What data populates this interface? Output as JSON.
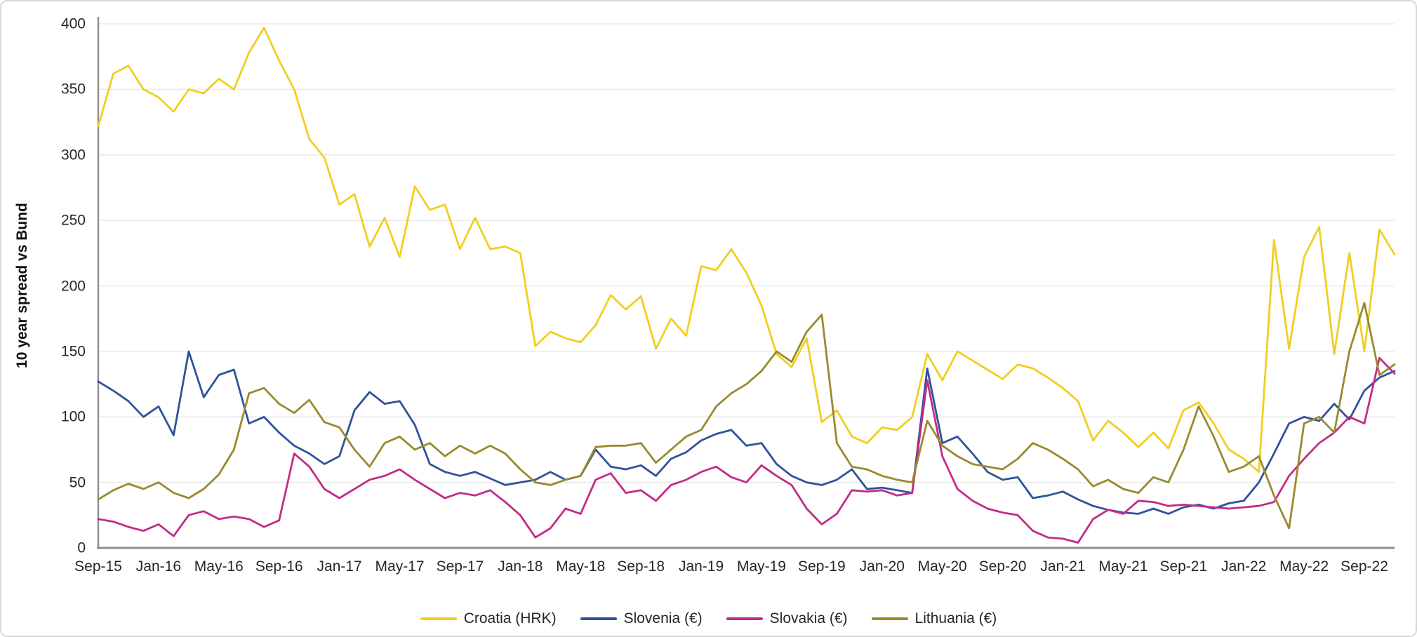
{
  "chart_data": {
    "type": "line",
    "title": "",
    "ylabel": "10 year spread vs Bund",
    "xlabel": "",
    "ylim": [
      0,
      400
    ],
    "yticks": [
      0,
      50,
      100,
      150,
      200,
      250,
      300,
      350,
      400
    ],
    "grid": "horizontal",
    "grid_color": "#e9e9e9",
    "axis_color": "#8c8c8c",
    "legend_position": "bottom",
    "x_frequency": "monthly",
    "x_start": "Sep-15",
    "x_end": "Nov-22",
    "x_tick_labels": [
      "Sep-15",
      "Jan-16",
      "May-16",
      "Sep-16",
      "Jan-17",
      "May-17",
      "Sep-17",
      "Jan-18",
      "May-18",
      "Sep-18",
      "Jan-19",
      "May-19",
      "Sep-19",
      "Jan-20",
      "May-20",
      "Sep-20",
      "Jan-21",
      "May-21",
      "Sep-21",
      "Jan-22",
      "May-22",
      "Sep-22"
    ],
    "x_tick_every_months": 4,
    "series": [
      {
        "name": "Croatia (HRK)",
        "color": "#f0cf20",
        "values": [
          322,
          362,
          368,
          350,
          344,
          333,
          350,
          347,
          358,
          350,
          378,
          397,
          372,
          350,
          312,
          298,
          262,
          270,
          230,
          252,
          222,
          276,
          258,
          262,
          228,
          252,
          228,
          230,
          225,
          154,
          165,
          160,
          157,
          170,
          193,
          182,
          192,
          152,
          175,
          162,
          215,
          212,
          228,
          210,
          185,
          148,
          138,
          160,
          96,
          105,
          85,
          80,
          92,
          90,
          100,
          148,
          128,
          150,
          143,
          136,
          129,
          140,
          137,
          130,
          122,
          112,
          82,
          97,
          88,
          77,
          88,
          76,
          105,
          111,
          95,
          75,
          68,
          58,
          235,
          152,
          222,
          245,
          148,
          225,
          150,
          243,
          224
        ]
      },
      {
        "name": "Slovenia (€)",
        "color": "#2f529b",
        "values": [
          127,
          120,
          112,
          100,
          108,
          86,
          150,
          115,
          132,
          136,
          95,
          100,
          88,
          78,
          72,
          64,
          70,
          105,
          119,
          110,
          112,
          94,
          64,
          58,
          55,
          58,
          53,
          48,
          50,
          52,
          58,
          52,
          55,
          75,
          62,
          60,
          63,
          55,
          68,
          73,
          82,
          87,
          90,
          78,
          80,
          64,
          55,
          50,
          48,
          52,
          60,
          45,
          46,
          44,
          42,
          137,
          80,
          85,
          72,
          58,
          52,
          54,
          38,
          40,
          43,
          37,
          32,
          29,
          27,
          26,
          30,
          26,
          31,
          33,
          30,
          34,
          36,
          50,
          72,
          95,
          100,
          97,
          110,
          98,
          120,
          130,
          135
        ]
      },
      {
        "name": "Slovakia (€)",
        "color": "#c22c86",
        "values": [
          22,
          20,
          16,
          13,
          18,
          9,
          25,
          28,
          22,
          24,
          22,
          16,
          21,
          72,
          62,
          45,
          38,
          45,
          52,
          55,
          60,
          52,
          45,
          38,
          42,
          40,
          44,
          35,
          25,
          8,
          15,
          30,
          26,
          52,
          57,
          42,
          44,
          36,
          48,
          52,
          58,
          62,
          54,
          50,
          63,
          55,
          48,
          30,
          18,
          26,
          44,
          43,
          44,
          40,
          42,
          128,
          70,
          45,
          36,
          30,
          27,
          25,
          13,
          8,
          7,
          4,
          22,
          29,
          26,
          36,
          35,
          32,
          33,
          32,
          31,
          30,
          31,
          32,
          35,
          55,
          68,
          80,
          88,
          100,
          95,
          145,
          133
        ]
      },
      {
        "name": "Lithuania (€)",
        "color": "#998a2e",
        "values": [
          37,
          44,
          49,
          45,
          50,
          42,
          38,
          45,
          56,
          75,
          118,
          122,
          110,
          103,
          113,
          96,
          92,
          75,
          62,
          80,
          85,
          75,
          80,
          70,
          78,
          72,
          78,
          72,
          60,
          50,
          48,
          52,
          55,
          77,
          78,
          78,
          80,
          65,
          75,
          85,
          90,
          108,
          118,
          125,
          135,
          150,
          142,
          165,
          178,
          80,
          62,
          60,
          55,
          52,
          50,
          97,
          78,
          70,
          64,
          62,
          60,
          68,
          80,
          75,
          68,
          60,
          47,
          52,
          45,
          42,
          54,
          50,
          75,
          108,
          85,
          58,
          62,
          70,
          40,
          15,
          95,
          100,
          88,
          150,
          187,
          132,
          140
        ]
      }
    ]
  }
}
